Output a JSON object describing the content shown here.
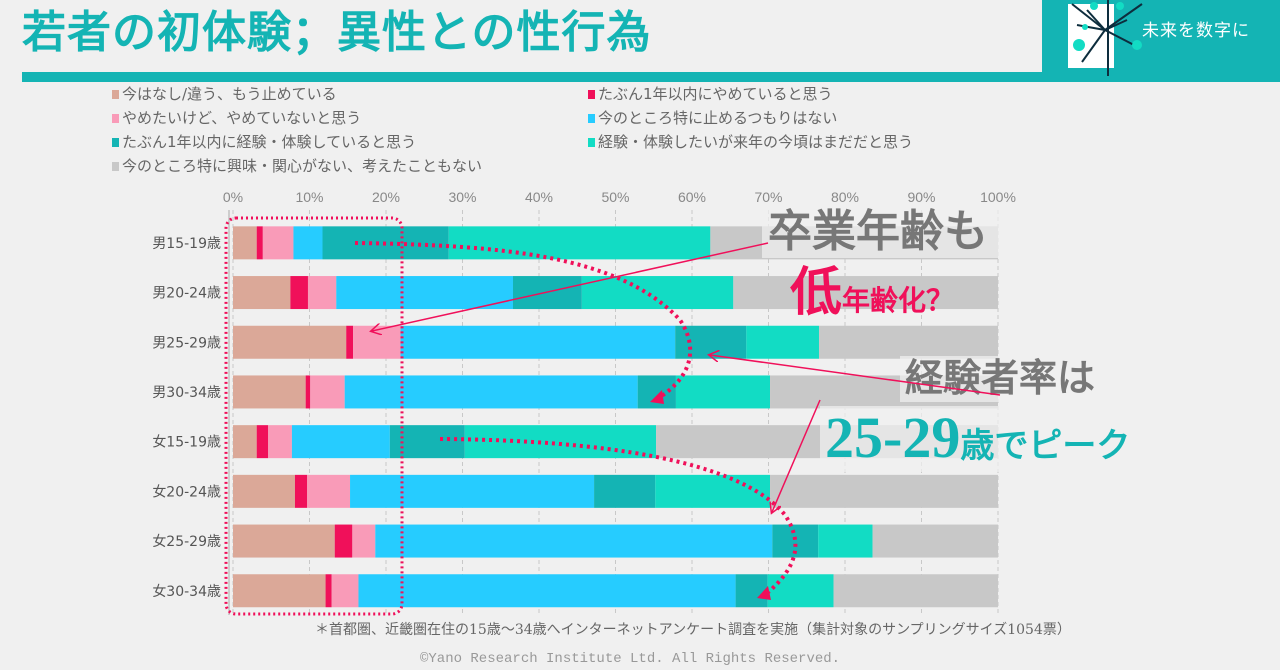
{
  "header": {
    "title": "若者の初体験；異性との性行為",
    "brand_text": "未来を数字に"
  },
  "chart_data": {
    "type": "bar",
    "orientation": "horizontal",
    "stacked": true,
    "xlim": [
      0,
      100
    ],
    "x_ticks": [
      "0%",
      "10%",
      "20%",
      "30%",
      "40%",
      "50%",
      "60%",
      "70%",
      "80%",
      "90%",
      "100%"
    ],
    "grid": true,
    "legend_position": "top",
    "categories": [
      "男15-19歳",
      "男20-24歳",
      "男25-29歳",
      "男30-34歳",
      "女15-19歳",
      "女20-24歳",
      "女25-29歳",
      "女30-34歳"
    ],
    "series": [
      {
        "name": "今はなし/違う、もう止めている",
        "color": "#dba898",
        "values": [
          3.1,
          7.5,
          14.8,
          9.5,
          3.1,
          8.1,
          13.3,
          12.1
        ]
      },
      {
        "name": "たぶん1年以内にやめていると思う",
        "color": "#f0105a",
        "values": [
          0.8,
          2.3,
          0.9,
          0.6,
          1.5,
          1.6,
          2.3,
          0.8
        ]
      },
      {
        "name": "やめたいけど、やめていないと思う",
        "color": "#f99bb8",
        "values": [
          4.0,
          3.7,
          6.2,
          4.5,
          3.1,
          5.6,
          3.0,
          3.5
        ]
      },
      {
        "name": "今のところ特に止めるつもりはない",
        "color": "#26ccff",
        "values": [
          3.8,
          23.1,
          35.9,
          38.3,
          12.8,
          31.9,
          51.9,
          49.3
        ]
      },
      {
        "name": "たぶん1年以内に経験・体験していると思う",
        "color": "#14b4b4",
        "values": [
          16.5,
          9.0,
          9.3,
          5.0,
          9.8,
          8.0,
          6.0,
          4.2
        ]
      },
      {
        "name": "経験・体験したいが来年の今頃はまだだと思う",
        "color": "#12dcc4",
        "values": [
          34.2,
          19.8,
          9.5,
          12.3,
          25.0,
          15.0,
          7.1,
          8.6
        ]
      },
      {
        "name": "今のところ特に興味・関心がない、考えたこともない",
        "color": "#c8c8c8",
        "values": [
          37.6,
          34.6,
          23.4,
          29.8,
          44.7,
          29.8,
          16.4,
          21.5
        ]
      }
    ],
    "annotations": {
      "a1_line1": "卒業年齢も",
      "a1_big": "低",
      "a1_rest": "年齢化？",
      "a2_line1": "経験者率は",
      "a2_big": "25-29",
      "a2_rest": "歳でピーク"
    }
  },
  "footnote": "＊首都圏、近畿圏在住の15歳～34歳へインターネットアンケート調査を実施（集計対象のサンプリングサイズ1054票）",
  "copyright": "©Yano Research Institute Ltd. All Rights Reserved."
}
